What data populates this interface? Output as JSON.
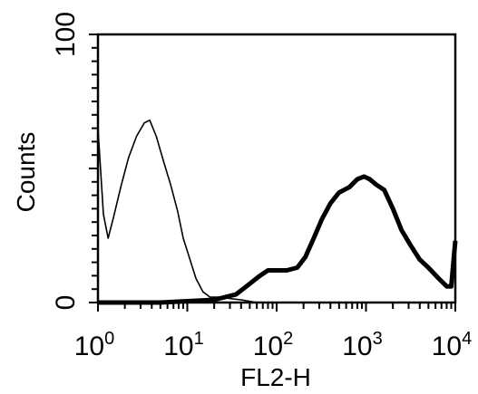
{
  "chart_data": {
    "type": "line",
    "title": "",
    "xlabel": "FL2-H",
    "ylabel": "Counts",
    "x_scale": "log",
    "xlim": [
      1,
      10000
    ],
    "ylim": [
      0,
      100
    ],
    "x_ticks": [
      {
        "base": "10",
        "exp": "0",
        "value": 1
      },
      {
        "base": "10",
        "exp": "1",
        "value": 10
      },
      {
        "base": "10",
        "exp": "2",
        "value": 100
      },
      {
        "base": "10",
        "exp": "3",
        "value": 1000
      },
      {
        "base": "10",
        "exp": "4",
        "value": 10000
      }
    ],
    "y_ticks": [
      {
        "label": "0",
        "value": 0
      },
      {
        "label": "100",
        "value": 100
      }
    ],
    "grid": false,
    "legend": "none",
    "series": [
      {
        "style": "thin",
        "color": "#000000",
        "points": [
          [
            1,
            65
          ],
          [
            1.15,
            33
          ],
          [
            1.3,
            24
          ],
          [
            1.5,
            32
          ],
          [
            1.8,
            43
          ],
          [
            2.2,
            54
          ],
          [
            2.7,
            62
          ],
          [
            3.3,
            67
          ],
          [
            3.8,
            68
          ],
          [
            4.5,
            62
          ],
          [
            5.5,
            52
          ],
          [
            6.5,
            44
          ],
          [
            7.8,
            34
          ],
          [
            9,
            24
          ],
          [
            10.5,
            17
          ],
          [
            12.5,
            9
          ],
          [
            15,
            4
          ],
          [
            18,
            2
          ],
          [
            23,
            2
          ],
          [
            30,
            1.5
          ],
          [
            40,
            1
          ],
          [
            60,
            0
          ]
        ]
      },
      {
        "style": "thick",
        "color": "#000000",
        "points": [
          [
            1,
            0
          ],
          [
            5,
            0
          ],
          [
            10,
            0.5
          ],
          [
            20,
            1
          ],
          [
            35,
            3
          ],
          [
            50,
            7
          ],
          [
            65,
            10
          ],
          [
            80,
            12
          ],
          [
            100,
            12
          ],
          [
            130,
            12
          ],
          [
            170,
            13
          ],
          [
            210,
            17
          ],
          [
            260,
            24
          ],
          [
            320,
            31
          ],
          [
            400,
            37
          ],
          [
            500,
            41
          ],
          [
            650,
            43
          ],
          [
            800,
            46
          ],
          [
            950,
            47
          ],
          [
            1100,
            46
          ],
          [
            1300,
            44
          ],
          [
            1600,
            42
          ],
          [
            2000,
            35
          ],
          [
            2500,
            27
          ],
          [
            3200,
            21
          ],
          [
            4000,
            16
          ],
          [
            5000,
            13
          ],
          [
            6500,
            9
          ],
          [
            8000,
            6
          ],
          [
            9000,
            6
          ],
          [
            10000,
            23
          ]
        ]
      }
    ]
  }
}
